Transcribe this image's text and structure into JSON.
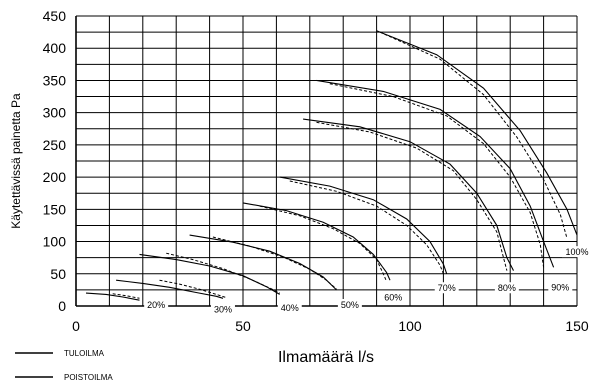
{
  "chart_data": {
    "type": "line",
    "xlabel": "Ilmamäärä l/s",
    "ylabel": "Käytettävissä painetta Pa",
    "xlim": [
      0,
      150
    ],
    "ylim": [
      0,
      450
    ],
    "x_ticks": [
      0,
      50,
      100,
      150
    ],
    "y_ticks": [
      0,
      50,
      100,
      150,
      200,
      250,
      300,
      350,
      400,
      450
    ],
    "grid": true,
    "legend": [
      {
        "label": "TULOILMA",
        "style": "solid"
      },
      {
        "label": "POISTOILMA",
        "style": "dashed"
      }
    ],
    "curves": [
      {
        "label": "20%",
        "label_at": [
          24,
          0
        ],
        "supply": [
          [
            3,
            20
          ],
          [
            9,
            18
          ],
          [
            14,
            14
          ],
          [
            19,
            9
          ]
        ],
        "exhaust": [
          [
            11,
            19
          ],
          [
            15,
            16
          ],
          [
            19,
            12
          ]
        ]
      },
      {
        "label": "30%",
        "label_at": [
          44,
          -7
        ],
        "supply": [
          [
            12,
            40
          ],
          [
            20,
            35
          ],
          [
            28,
            29
          ],
          [
            36,
            21
          ],
          [
            42,
            15
          ],
          [
            44,
            12
          ]
        ],
        "exhaust": [
          [
            25,
            40
          ],
          [
            31,
            34
          ],
          [
            37,
            26
          ],
          [
            42,
            18
          ],
          [
            45,
            13
          ]
        ]
      },
      {
        "label": "40%",
        "label_at": [
          64,
          -5
        ],
        "supply": [
          [
            19,
            80
          ],
          [
            30,
            72
          ],
          [
            40,
            62
          ],
          [
            50,
            47
          ],
          [
            57,
            30
          ],
          [
            61,
            18
          ]
        ],
        "exhaust": [
          [
            27,
            82
          ],
          [
            35,
            72
          ],
          [
            44,
            58
          ],
          [
            52,
            42
          ],
          [
            58,
            28
          ],
          [
            61,
            20
          ]
        ]
      },
      {
        "label": "50%",
        "label_at": [
          82,
          0
        ],
        "supply": [
          [
            34,
            110
          ],
          [
            47,
            99
          ],
          [
            58,
            85
          ],
          [
            67,
            66
          ],
          [
            74,
            45
          ],
          [
            78,
            25
          ]
        ],
        "exhaust": [
          [
            41,
            107
          ],
          [
            52,
            93
          ],
          [
            62,
            76
          ],
          [
            70,
            57
          ],
          [
            75,
            40
          ],
          [
            78,
            26
          ]
        ]
      },
      {
        "label": "60%",
        "label_at": [
          95,
          12
        ],
        "supply": [
          [
            50,
            160
          ],
          [
            63,
            148
          ],
          [
            74,
            130
          ],
          [
            83,
            107
          ],
          [
            89,
            80
          ],
          [
            93,
            52
          ],
          [
            94,
            40
          ]
        ],
        "exhaust": [
          [
            55,
            155
          ],
          [
            67,
            140
          ],
          [
            77,
            120
          ],
          [
            85,
            97
          ],
          [
            90,
            72
          ],
          [
            92,
            50
          ],
          [
            93,
            38
          ]
        ]
      },
      {
        "label": "70%",
        "label_at": [
          111,
          26
        ],
        "supply": [
          [
            61,
            200
          ],
          [
            76,
            186
          ],
          [
            89,
            165
          ],
          [
            99,
            135
          ],
          [
            106,
            100
          ],
          [
            110,
            65
          ],
          [
            111,
            50
          ]
        ],
        "exhaust": [
          [
            64,
            194
          ],
          [
            78,
            178
          ],
          [
            90,
            155
          ],
          [
            99,
            125
          ],
          [
            105,
            95
          ],
          [
            109,
            63
          ],
          [
            110,
            50
          ]
        ]
      },
      {
        "label": "80%",
        "label_at": [
          129,
          26
        ],
        "supply": [
          [
            68,
            290
          ],
          [
            85,
            278
          ],
          [
            100,
            255
          ],
          [
            112,
            220
          ],
          [
            120,
            175
          ],
          [
            126,
            125
          ],
          [
            129,
            75
          ],
          [
            131,
            55
          ]
        ],
        "exhaust": [
          [
            72,
            285
          ],
          [
            88,
            270
          ],
          [
            102,
            245
          ],
          [
            113,
            210
          ],
          [
            120,
            165
          ],
          [
            126,
            115
          ],
          [
            128,
            75
          ],
          [
            129,
            55
          ]
        ]
      },
      {
        "label": "90%",
        "label_at": [
          145,
          27
        ],
        "supply": [
          [
            72,
            350
          ],
          [
            92,
            333
          ],
          [
            109,
            305
          ],
          [
            121,
            263
          ],
          [
            130,
            213
          ],
          [
            136,
            155
          ],
          [
            140,
            100
          ],
          [
            143,
            60
          ]
        ],
        "exhaust": [
          [
            76,
            345
          ],
          [
            95,
            325
          ],
          [
            111,
            295
          ],
          [
            122,
            252
          ],
          [
            130,
            200
          ],
          [
            136,
            145
          ],
          [
            139,
            95
          ],
          [
            140,
            60
          ]
        ]
      },
      {
        "label": "100%",
        "label_at": [
          150,
          82
        ],
        "supply": [
          [
            90,
            427
          ],
          [
            108,
            390
          ],
          [
            122,
            338
          ],
          [
            133,
            272
          ],
          [
            141,
            206
          ],
          [
            147,
            150
          ],
          [
            150,
            110
          ]
        ],
        "exhaust": [
          [
            91,
            425
          ],
          [
            109,
            383
          ],
          [
            122,
            328
          ],
          [
            132,
            262
          ],
          [
            140,
            196
          ],
          [
            145,
            142
          ],
          [
            147,
            105
          ]
        ]
      }
    ]
  }
}
